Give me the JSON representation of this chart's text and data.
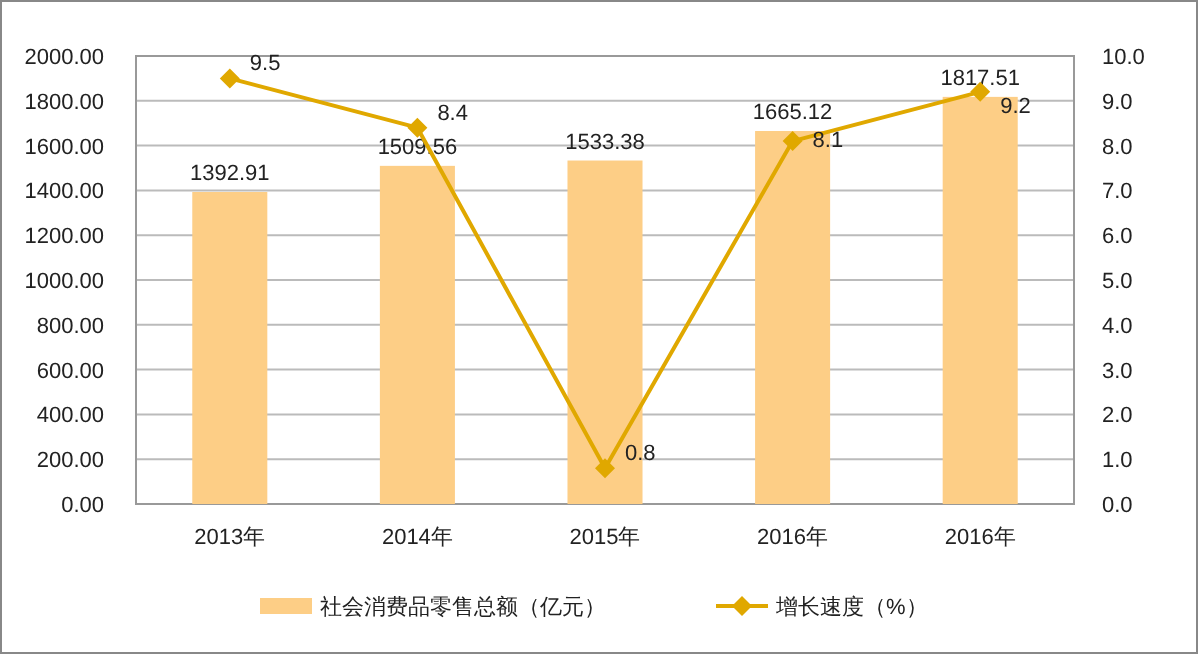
{
  "chart_data": {
    "type": "bar",
    "categories": [
      "2013年",
      "2014年",
      "2015年",
      "2016年",
      "2016年"
    ],
    "series": [
      {
        "name": "社会消费品零售总额（亿元）",
        "type": "bar",
        "color": "#fdce86",
        "values": [
          1392.91,
          1509.56,
          1533.38,
          1665.12,
          1817.51
        ],
        "value_labels": [
          "1392.91",
          "1509.56",
          "1533.38",
          "1665.12",
          "1817.51"
        ]
      },
      {
        "name": "增长速度（%）",
        "type": "line",
        "axis": "y2",
        "color": "#e0a800",
        "marker": "diamond",
        "values": [
          9.5,
          8.4,
          0.8,
          8.1,
          9.2
        ],
        "value_labels": [
          "9.5",
          "8.4",
          "0.8",
          "8.1",
          "9.2"
        ]
      }
    ],
    "ylim": [
      0,
      2000
    ],
    "yticks": [
      {
        "value": 0,
        "label": "0.00"
      },
      {
        "value": 200,
        "label": "200.00"
      },
      {
        "value": 400,
        "label": "400.00"
      },
      {
        "value": 600,
        "label": "600.00"
      },
      {
        "value": 800,
        "label": "800.00"
      },
      {
        "value": 1000,
        "label": "1000.00"
      },
      {
        "value": 1200,
        "label": "1200.00"
      },
      {
        "value": 1400,
        "label": "1400.00"
      },
      {
        "value": 1600,
        "label": "1600.00"
      },
      {
        "value": 1800,
        "label": "1800.00"
      },
      {
        "value": 2000,
        "label": "2000.00"
      }
    ],
    "y2lim": [
      0,
      10
    ],
    "y2ticks": [
      {
        "value": 0,
        "label": "0.0"
      },
      {
        "value": 1,
        "label": "1.0"
      },
      {
        "value": 2,
        "label": "2.0"
      },
      {
        "value": 3,
        "label": "3.0"
      },
      {
        "value": 4,
        "label": "4.0"
      },
      {
        "value": 5,
        "label": "5.0"
      },
      {
        "value": 6,
        "label": "6.0"
      },
      {
        "value": 7,
        "label": "7.0"
      },
      {
        "value": 8,
        "label": "8.0"
      },
      {
        "value": 9,
        "label": "9.0"
      },
      {
        "value": 10,
        "label": "10.0"
      }
    ],
    "grid": "y",
    "legend": "bottom"
  }
}
